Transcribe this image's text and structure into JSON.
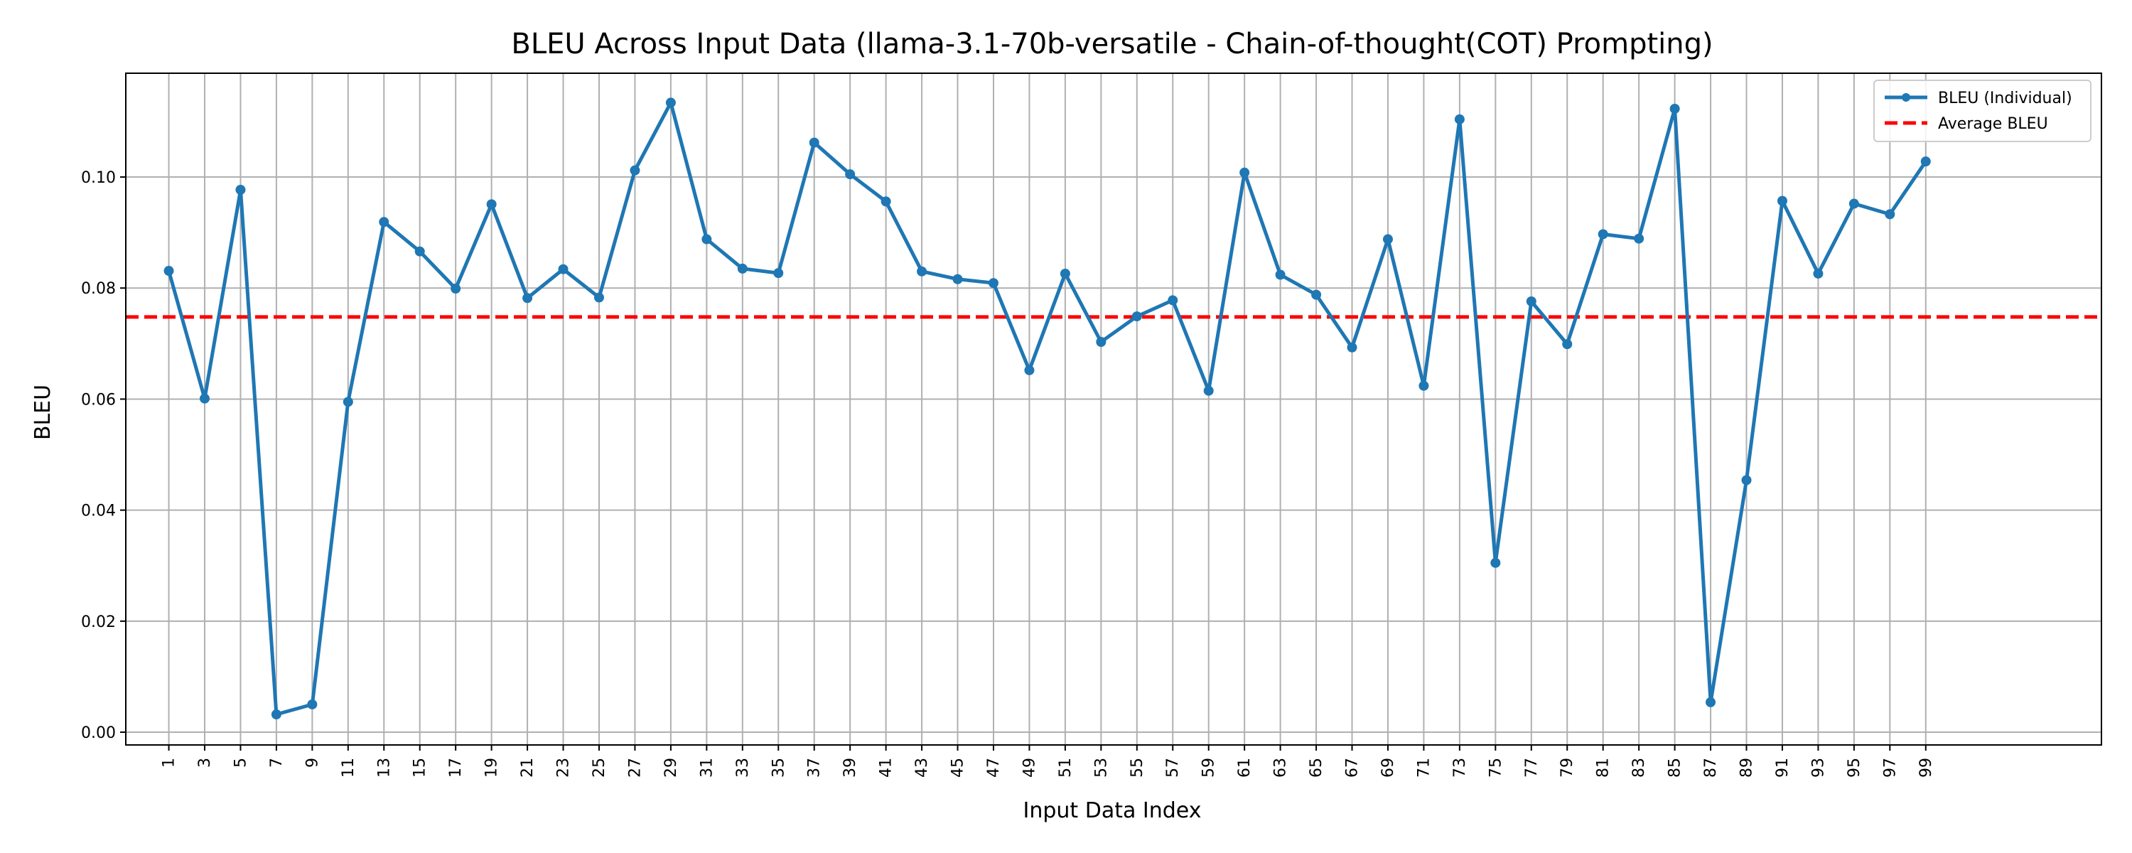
{
  "chart_data": {
    "type": "line",
    "title": "BLEU Across Input Data (llama-3.1-70b-versatile - Chain-of-thought(COT) Prompting)",
    "xlabel": "Input Data Index",
    "ylabel": "BLEU",
    "x_ticks": [
      "1",
      "3",
      "5",
      "7",
      "9",
      "11",
      "13",
      "15",
      "17",
      "19",
      "21",
      "23",
      "25",
      "27",
      "29",
      "31",
      "33",
      "35",
      "37",
      "39",
      "41",
      "43",
      "45",
      "47",
      "49",
      "51",
      "53",
      "55",
      "57",
      "59",
      "61",
      "63",
      "65",
      "67",
      "69",
      "71",
      "73",
      "75",
      "77",
      "79",
      "81",
      "83",
      "85",
      "87",
      "89",
      "91",
      "93",
      "95",
      "97",
      "99"
    ],
    "y_ticks": [
      "0.00",
      "0.02",
      "0.04",
      "0.06",
      "0.08",
      "0.10"
    ],
    "ylim": [
      -0.0023,
      0.1187
    ],
    "xlim": [
      -1.4,
      108.8
    ],
    "grid": true,
    "legend_position": "top-right",
    "series": [
      {
        "name": "BLEU (Individual)",
        "color": "#1f77b4",
        "style": "solid-with-markers",
        "x": [
          1,
          3,
          5,
          7,
          9,
          11,
          13,
          15,
          17,
          19,
          21,
          23,
          25,
          27,
          29,
          31,
          33,
          35,
          37,
          39,
          41,
          43,
          45,
          47,
          49,
          51,
          53,
          55,
          57,
          59,
          61,
          63,
          65,
          67,
          69,
          71,
          73,
          75,
          77,
          79,
          81,
          83,
          85,
          87,
          89,
          91,
          93,
          95,
          97,
          99
        ],
        "values": [
          0.0831,
          0.0601,
          0.0977,
          0.0032,
          0.005,
          0.0595,
          0.0919,
          0.0866,
          0.0799,
          0.0951,
          0.0782,
          0.0834,
          0.0783,
          0.1012,
          0.1134,
          0.0888,
          0.0835,
          0.0827,
          0.1062,
          0.1005,
          0.0956,
          0.083,
          0.0816,
          0.0809,
          0.0652,
          0.0826,
          0.0703,
          0.0749,
          0.0778,
          0.0615,
          0.1008,
          0.0824,
          0.0788,
          0.0693,
          0.0888,
          0.0624,
          0.1104,
          0.0305,
          0.0776,
          0.0699,
          0.0897,
          0.0889,
          0.1123,
          0.0054,
          0.0454,
          0.0957,
          0.0826,
          0.0952,
          0.0933,
          0.1028
        ]
      },
      {
        "name": "Average BLEU",
        "color": "#ff0000",
        "style": "dashed",
        "y": 0.0748
      }
    ]
  }
}
